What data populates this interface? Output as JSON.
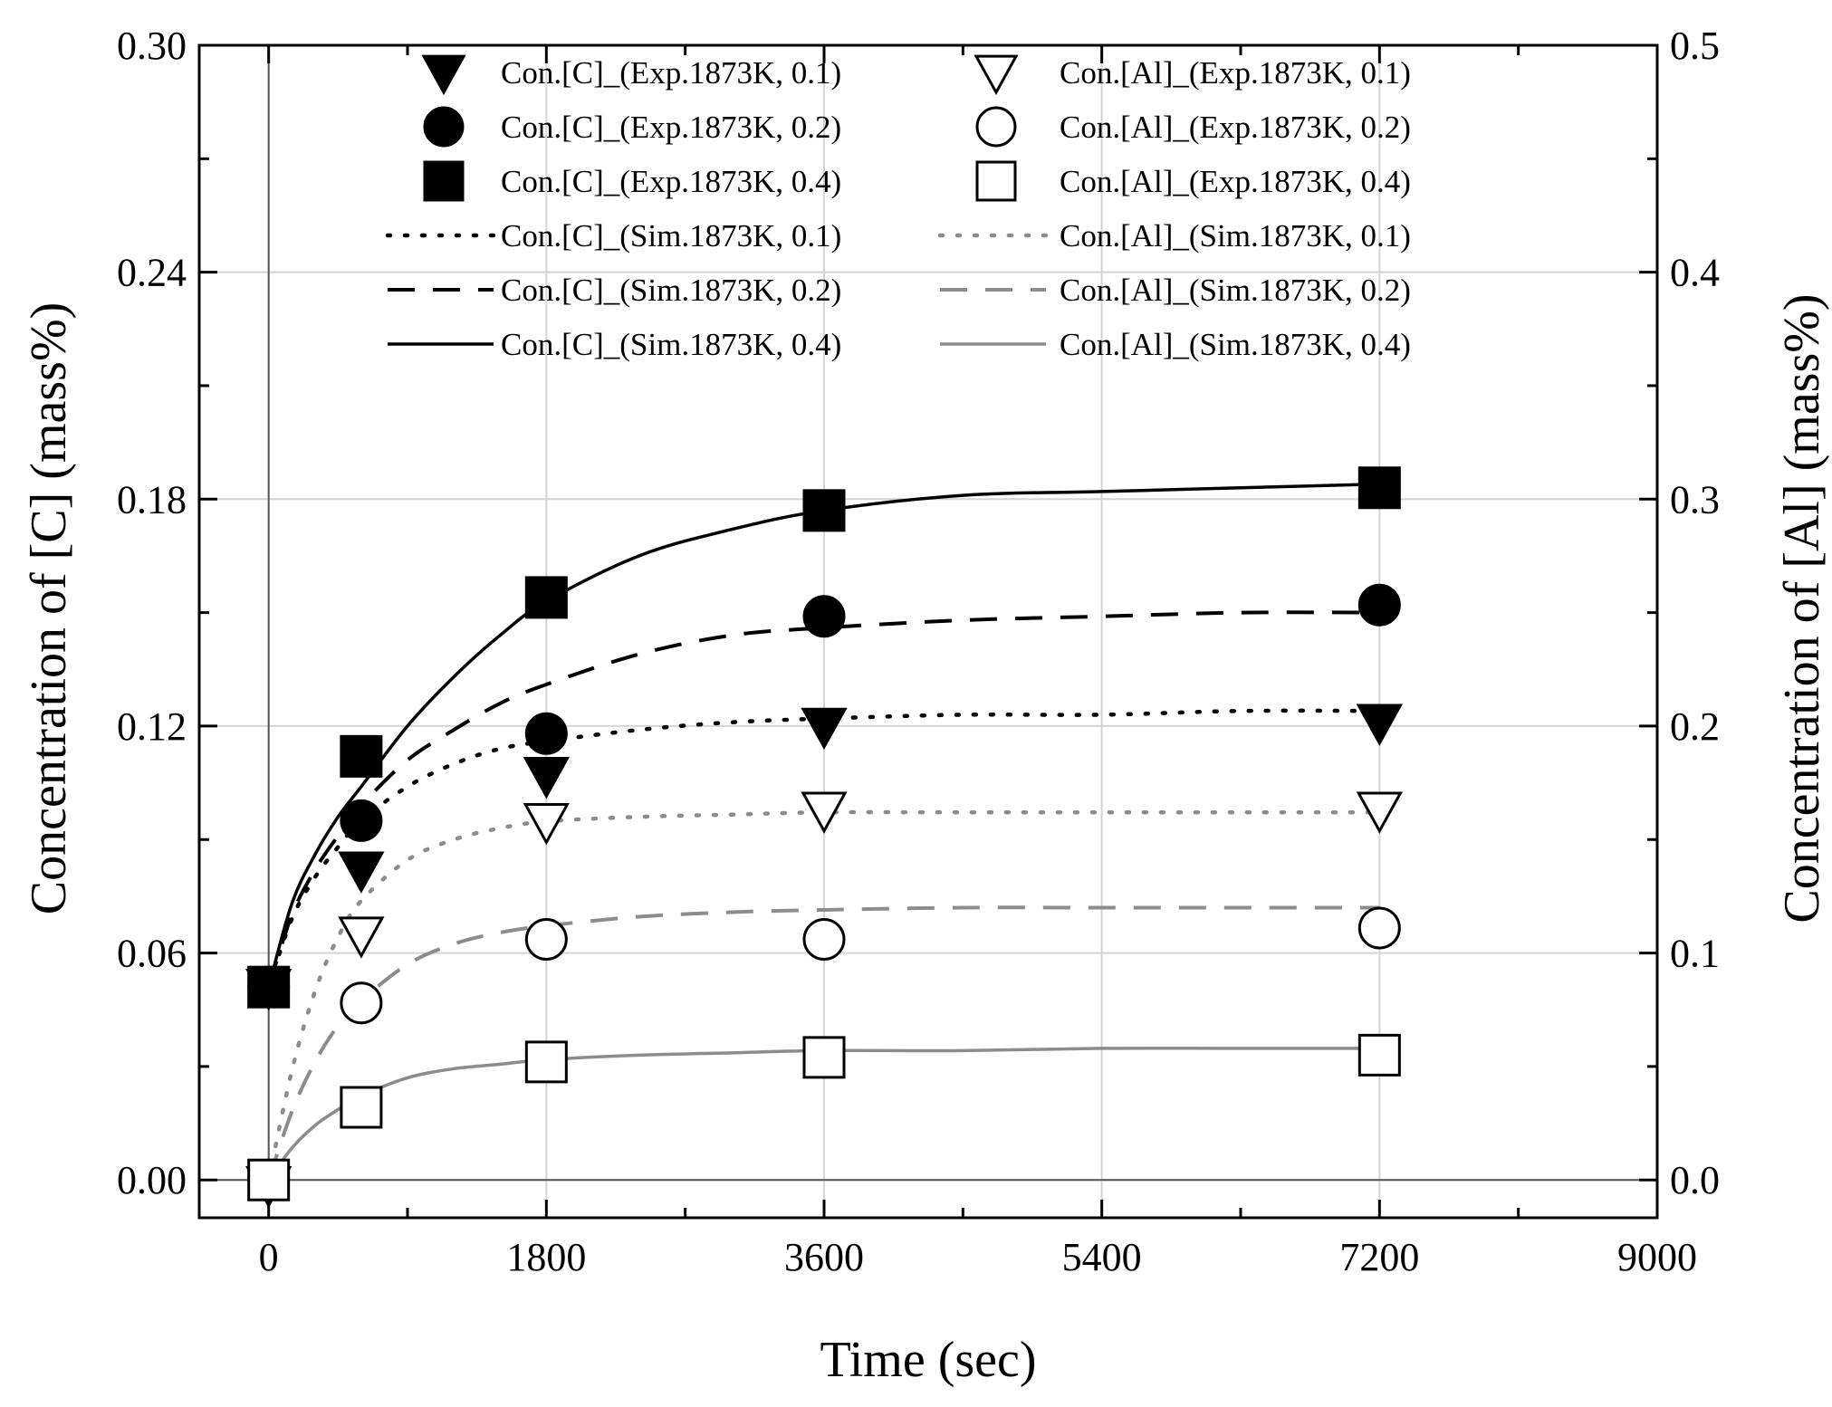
{
  "chart_data": {
    "type": "line",
    "xlabel": "Time (sec)",
    "ylabel_left": "Concentration of [C] (mass%)",
    "ylabel_right": "Concentration of [Al] (mass%)",
    "xlim": [
      -450,
      9000
    ],
    "ylim_left": [
      -0.01,
      0.3
    ],
    "ylim_right": [
      -0.016667,
      0.5
    ],
    "x_ticks": [
      0,
      1800,
      3600,
      5400,
      7200,
      9000
    ],
    "x_tick_labels": [
      "0",
      "1800",
      "3600",
      "5400",
      "7200",
      "9000"
    ],
    "y_left_ticks": [
      0.0,
      0.06,
      0.12,
      0.18,
      0.24,
      0.3
    ],
    "y_left_tick_labels": [
      "0.00",
      "0.06",
      "0.12",
      "0.18",
      "0.24",
      "0.30"
    ],
    "y_right_ticks": [
      0.0,
      0.1,
      0.2,
      0.3,
      0.4,
      0.5
    ],
    "y_right_tick_labels": [
      "0.0",
      "0.1",
      "0.2",
      "0.3",
      "0.4",
      "0.5"
    ],
    "grid": true,
    "legend_position": "top",
    "series": [
      {
        "name": "Con.[C]_(Exp.1873K, 0.1)",
        "kind": "marker",
        "marker": "triangle-down-filled",
        "color": "#000000",
        "axis": "left",
        "x": [
          0,
          600,
          1800,
          3600,
          7200
        ],
        "y": [
          0.051,
          0.082,
          0.107,
          0.12,
          0.121
        ]
      },
      {
        "name": "Con.[C]_(Exp.1873K, 0.2)",
        "kind": "marker",
        "marker": "circle-filled",
        "color": "#000000",
        "axis": "left",
        "x": [
          0,
          600,
          1800,
          3600,
          7200
        ],
        "y": [
          0.051,
          0.095,
          0.118,
          0.149,
          0.152
        ]
      },
      {
        "name": "Con.[C]_(Exp.1873K, 0.4)",
        "kind": "marker",
        "marker": "square-filled",
        "color": "#000000",
        "axis": "left",
        "x": [
          0,
          600,
          1800,
          3600,
          7200
        ],
        "y": [
          0.051,
          0.112,
          0.154,
          0.177,
          0.183
        ]
      },
      {
        "name": "Con.[Al]_(Exp.1873K, 0.1)",
        "kind": "marker",
        "marker": "triangle-down-open",
        "color": "#000000",
        "axis": "right",
        "x": [
          0,
          600,
          1800,
          3600,
          7200
        ],
        "y": [
          -0.002,
          0.108,
          0.158,
          0.163,
          0.163
        ]
      },
      {
        "name": "Con.[Al]_(Exp.1873K, 0.2)",
        "kind": "marker",
        "marker": "circle-open",
        "color": "#000000",
        "axis": "right",
        "x": [
          0,
          600,
          1800,
          3600,
          7200
        ],
        "y": [
          0.0,
          0.078,
          0.106,
          0.106,
          0.111
        ]
      },
      {
        "name": "Con.[Al]_(Exp.1873K, 0.4)",
        "kind": "marker",
        "marker": "square-open",
        "color": "#000000",
        "axis": "right",
        "x": [
          0,
          600,
          1800,
          3600,
          7200
        ],
        "y": [
          0.0,
          0.032,
          0.052,
          0.054,
          0.055
        ]
      },
      {
        "name": "Con.[C]_(Sim.1873K, 0.1)",
        "kind": "line",
        "dash": "dotted",
        "color": "#000000",
        "axis": "left",
        "x": [
          0,
          150,
          300,
          450,
          600,
          900,
          1200,
          1500,
          1800,
          2400,
          3000,
          3600,
          4500,
          5400,
          6300,
          7200
        ],
        "y": [
          0.051,
          0.069,
          0.08,
          0.088,
          0.095,
          0.104,
          0.11,
          0.114,
          0.116,
          0.119,
          0.121,
          0.122,
          0.123,
          0.123,
          0.124,
          0.124
        ]
      },
      {
        "name": "Con.[C]_(Sim.1873K, 0.2)",
        "kind": "line",
        "dash": "dashed",
        "color": "#000000",
        "axis": "left",
        "x": [
          0,
          150,
          300,
          450,
          600,
          900,
          1200,
          1500,
          1800,
          2400,
          3000,
          3600,
          4500,
          5400,
          6300,
          7200
        ],
        "y": [
          0.051,
          0.07,
          0.082,
          0.091,
          0.099,
          0.111,
          0.119,
          0.126,
          0.131,
          0.139,
          0.144,
          0.146,
          0.148,
          0.149,
          0.15,
          0.15
        ]
      },
      {
        "name": "Con.[C]_(Sim.1873K, 0.4)",
        "kind": "line",
        "dash": "solid",
        "color": "#000000",
        "axis": "left",
        "x": [
          0,
          150,
          300,
          450,
          600,
          900,
          1200,
          1500,
          1800,
          2400,
          3000,
          3600,
          4500,
          5400,
          6300,
          7200
        ],
        "y": [
          0.051,
          0.073,
          0.086,
          0.096,
          0.104,
          0.12,
          0.133,
          0.144,
          0.153,
          0.165,
          0.172,
          0.177,
          0.181,
          0.182,
          0.183,
          0.184
        ]
      },
      {
        "name": "Con.[Al]_(Sim.1873K, 0.1)",
        "kind": "line",
        "dash": "dotted",
        "color": "#8c8c8c",
        "axis": "right",
        "x": [
          0,
          150,
          300,
          450,
          600,
          900,
          1200,
          1500,
          1800,
          2400,
          3000,
          3600,
          4500,
          5400,
          6300,
          7200
        ],
        "y": [
          0.0,
          0.048,
          0.083,
          0.107,
          0.123,
          0.141,
          0.15,
          0.155,
          0.158,
          0.16,
          0.161,
          0.162,
          0.162,
          0.162,
          0.162,
          0.162
        ]
      },
      {
        "name": "Con.[Al]_(Sim.1873K, 0.2)",
        "kind": "line",
        "dash": "dashed",
        "color": "#8c8c8c",
        "axis": "right",
        "x": [
          0,
          150,
          300,
          450,
          600,
          900,
          1200,
          1500,
          1800,
          2400,
          3000,
          3600,
          4500,
          5400,
          6300,
          7200
        ],
        "y": [
          0.0,
          0.03,
          0.052,
          0.068,
          0.079,
          0.095,
          0.104,
          0.109,
          0.112,
          0.116,
          0.118,
          0.119,
          0.12,
          0.12,
          0.12,
          0.12
        ]
      },
      {
        "name": "Con.[Al]_(Sim.1873K, 0.4)",
        "kind": "line",
        "dash": "solid",
        "color": "#8c8c8c",
        "axis": "right",
        "x": [
          0,
          150,
          300,
          450,
          600,
          900,
          1200,
          1500,
          1800,
          2400,
          3000,
          3600,
          4500,
          5400,
          6300,
          7200
        ],
        "y": [
          0.0,
          0.014,
          0.024,
          0.031,
          0.037,
          0.045,
          0.049,
          0.051,
          0.053,
          0.055,
          0.056,
          0.057,
          0.057,
          0.058,
          0.058,
          0.058
        ]
      }
    ],
    "legend_order": [
      0,
      3,
      1,
      4,
      2,
      5,
      6,
      9,
      7,
      10,
      8,
      11
    ]
  }
}
